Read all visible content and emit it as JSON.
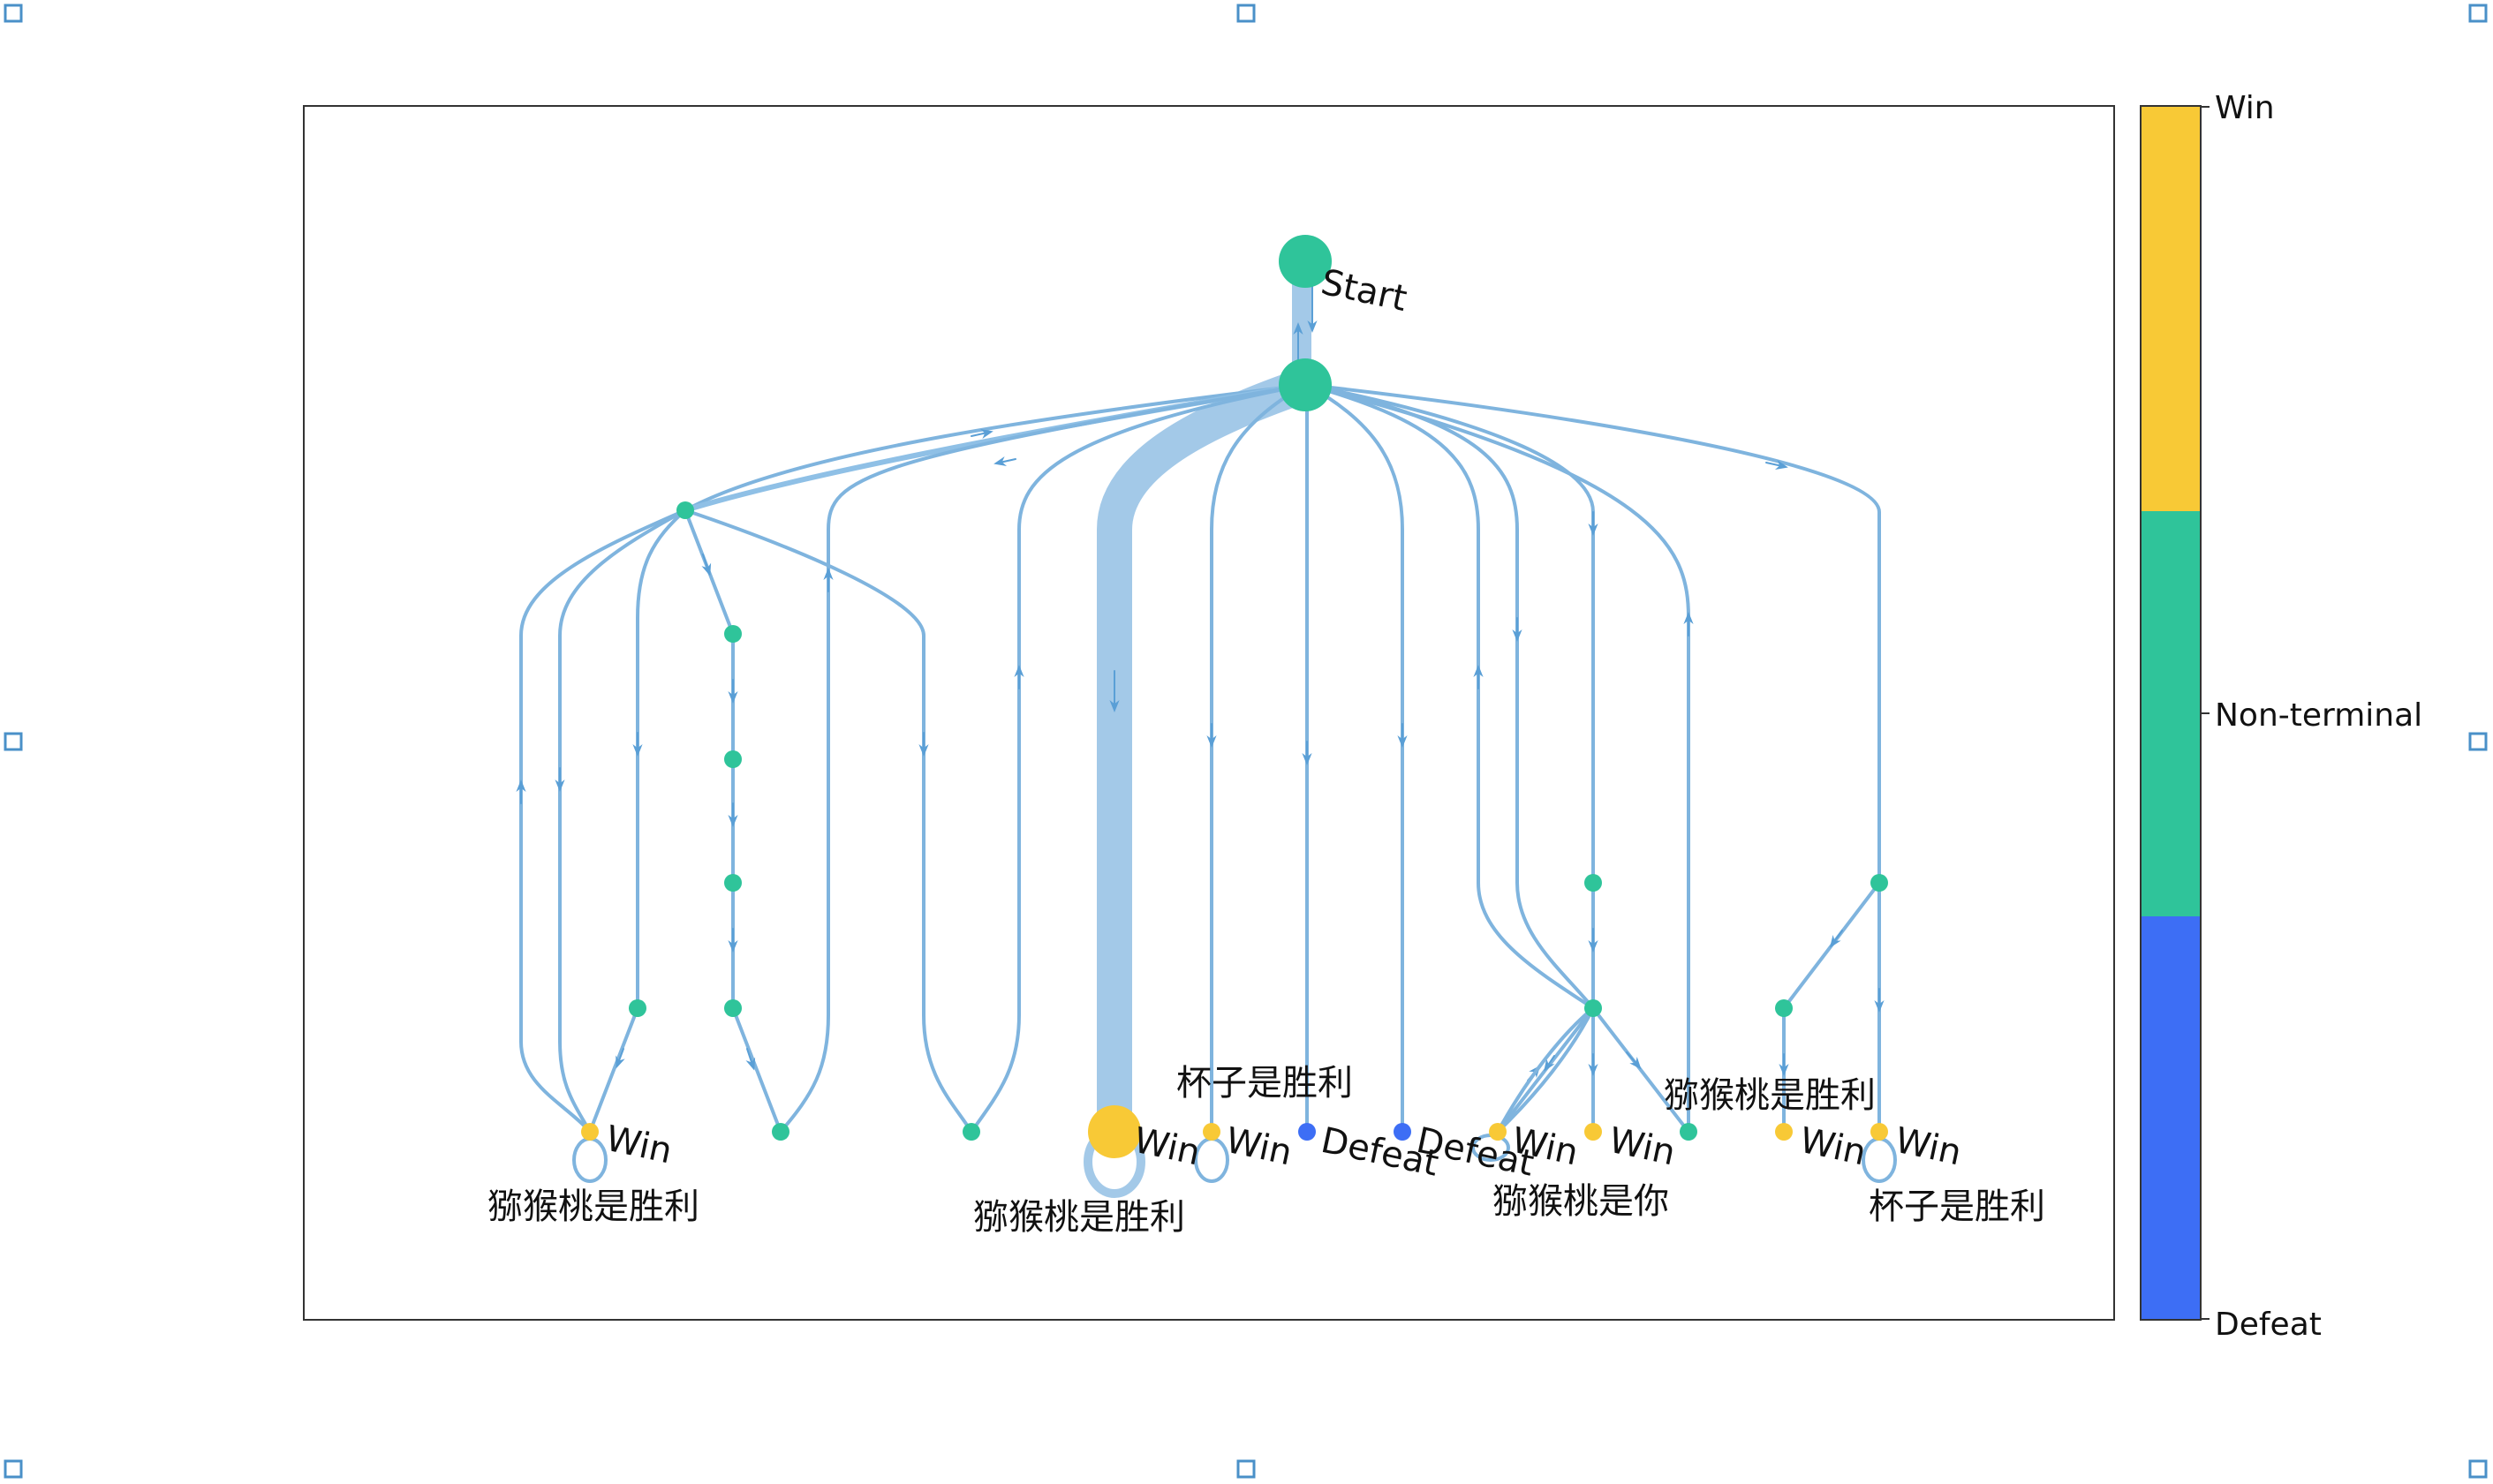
{
  "colors": {
    "edge": "#7fb4de",
    "win": "#f8c936",
    "nonterminal": "#2fc49a",
    "defeat": "#3d6ef5",
    "frame": "#333333"
  },
  "nodes": [
    {
      "id": "n1",
      "state": "nonterminal",
      "label": "Start",
      "size": "large"
    },
    {
      "id": "n2",
      "state": "nonterminal",
      "size": "large"
    },
    {
      "id": "n3",
      "state": "nonterminal"
    },
    {
      "id": "n4",
      "state": "nonterminal"
    },
    {
      "id": "n5",
      "state": "nonterminal"
    },
    {
      "id": "n6",
      "state": "nonterminal"
    },
    {
      "id": "n7",
      "state": "nonterminal"
    },
    {
      "id": "n8",
      "state": "nonterminal"
    },
    {
      "id": "n9",
      "state": "nonterminal"
    },
    {
      "id": "n10",
      "state": "nonterminal"
    },
    {
      "id": "n11",
      "state": "nonterminal"
    },
    {
      "id": "n12",
      "state": "nonterminal"
    },
    {
      "id": "n13",
      "state": "nonterminal"
    },
    {
      "id": "n14",
      "state": "nonterminal"
    },
    {
      "id": "w1",
      "state": "win",
      "label": "Win"
    },
    {
      "id": "w2",
      "state": "win",
      "label": "Win",
      "size": "large"
    },
    {
      "id": "w3",
      "state": "win",
      "label": "Win"
    },
    {
      "id": "w4",
      "state": "win",
      "label": "Win"
    },
    {
      "id": "w5",
      "state": "win",
      "label": "Win"
    },
    {
      "id": "w6",
      "state": "win",
      "label": "Win"
    },
    {
      "id": "w7",
      "state": "win",
      "label": "Win"
    },
    {
      "id": "d1",
      "state": "defeat",
      "label": "Defeat"
    },
    {
      "id": "d2",
      "state": "defeat",
      "label": "Defeat"
    }
  ],
  "edge_labels": [
    {
      "text": "猕猴桃是胜利",
      "near": "w1"
    },
    {
      "text": "猕猴桃是胜利",
      "near": "w2"
    },
    {
      "text": "杯子是胜利",
      "near": "w3"
    },
    {
      "text": "猕猴桃是你",
      "near": "w4"
    },
    {
      "text": "猕猴桃是胜利",
      "near": "w6"
    },
    {
      "text": "杯子是胜利",
      "near": "w7"
    }
  ],
  "edges": [
    {
      "from": "n1",
      "to": "n2",
      "weight": "heavy"
    },
    {
      "from": "n2",
      "to": "n1"
    },
    {
      "from": "n2",
      "to": "n3"
    },
    {
      "from": "n3",
      "to": "n2",
      "weight": "medium"
    },
    {
      "from": "n2",
      "to": "w2",
      "weight": "very-heavy"
    },
    {
      "from": "n2",
      "to": "w3"
    },
    {
      "from": "n2",
      "to": "d1"
    },
    {
      "from": "n2",
      "to": "d2"
    },
    {
      "from": "n2",
      "to": "n11"
    },
    {
      "from": "n2",
      "to": "n12"
    },
    {
      "from": "n2",
      "to": "n13"
    },
    {
      "from": "n2",
      "to": "n14"
    },
    {
      "from": "n3",
      "to": "w1"
    },
    {
      "from": "n3",
      "to": "n4"
    },
    {
      "from": "n3",
      "to": "n8"
    },
    {
      "from": "n3",
      "to": "n9"
    },
    {
      "from": "n4",
      "to": "n5"
    },
    {
      "from": "n5",
      "to": "n6"
    },
    {
      "from": "n6",
      "to": "n7"
    },
    {
      "from": "n7",
      "to": "n9"
    },
    {
      "from": "n8",
      "to": "w1"
    },
    {
      "from": "n9",
      "to": "n2"
    },
    {
      "from": "n10",
      "to": "n2"
    },
    {
      "from": "w1",
      "to": "n3"
    },
    {
      "from": "w1",
      "to": "w1"
    },
    {
      "from": "w2",
      "to": "w2"
    },
    {
      "from": "w3",
      "to": "w3"
    },
    {
      "from": "n11",
      "to": "n12"
    },
    {
      "from": "n12",
      "to": "w4"
    },
    {
      "from": "n12",
      "to": "w5"
    },
    {
      "from": "n12",
      "to": "n10"
    },
    {
      "from": "n12",
      "to": "n15"
    },
    {
      "from": "w4",
      "to": "n12"
    },
    {
      "from": "w4",
      "to": "w4"
    },
    {
      "from": "n15",
      "to": "n2"
    },
    {
      "from": "n14",
      "to": "n13b"
    },
    {
      "from": "n14",
      "to": "w7"
    },
    {
      "from": "n13b",
      "to": "w6"
    },
    {
      "from": "w7",
      "to": "w7"
    }
  ],
  "colorbar": {
    "labels": [
      "Win",
      "Non-terminal",
      "Defeat"
    ]
  }
}
